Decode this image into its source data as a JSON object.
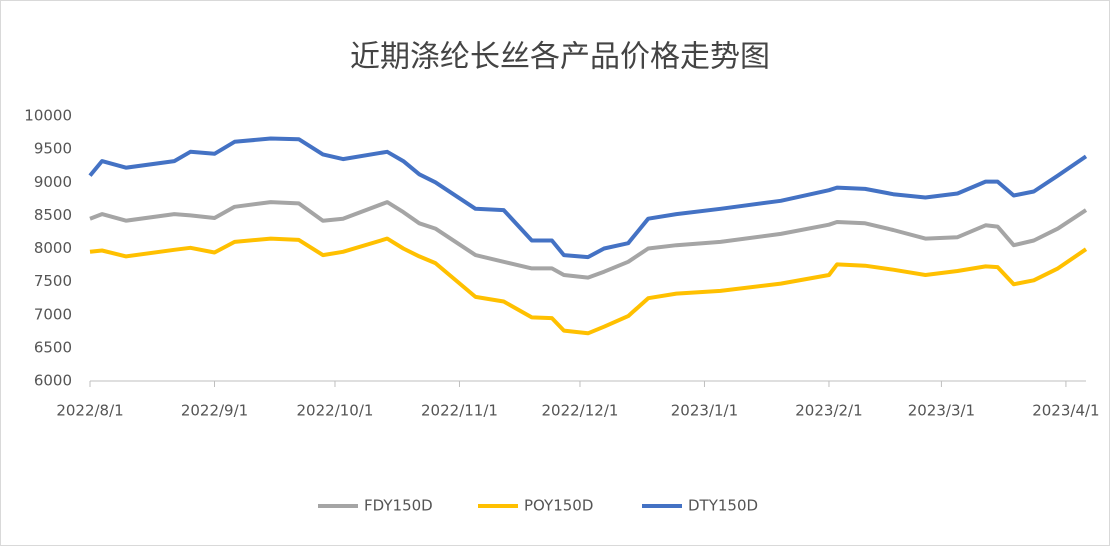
{
  "chart_data": {
    "type": "line",
    "title": "近期涤纶长丝各产品价格走势图",
    "x": [
      "2022/8/1",
      "2022/8/4",
      "2022/8/10",
      "2022/8/22",
      "2022/8/26",
      "2022/9/1",
      "2022/9/6",
      "2022/9/15",
      "2022/9/22",
      "2022/9/28",
      "2022/10/3",
      "2022/10/14",
      "2022/10/18",
      "2022/10/22",
      "2022/10/26",
      "2022/11/5",
      "2022/11/12",
      "2022/11/19",
      "2022/11/24",
      "2022/11/27",
      "2022/12/3",
      "2022/12/7",
      "2022/12/13",
      "2022/12/18",
      "2022/12/25",
      "2023/1/5",
      "2023/1/20",
      "2023/2/1",
      "2023/2/3",
      "2023/2/10",
      "2023/2/17",
      "2023/2/25",
      "2023/3/5",
      "2023/3/12",
      "2023/3/15",
      "2023/3/19",
      "2023/3/24",
      "2023/3/30",
      "2023/4/6"
    ],
    "series": [
      {
        "name": "FDY150D",
        "color": "#a5a5a5",
        "values": [
          8450,
          8520,
          8420,
          8520,
          8500,
          8460,
          8630,
          8700,
          8680,
          8420,
          8450,
          8700,
          8550,
          8380,
          8300,
          7900,
          7800,
          7700,
          7700,
          7600,
          7560,
          7650,
          7800,
          8000,
          8050,
          8100,
          8220,
          8360,
          8400,
          8380,
          8280,
          8150,
          8170,
          8350,
          8330,
          8050,
          8120,
          8300,
          8580
        ]
      },
      {
        "name": "POY150D",
        "color": "#ffc000",
        "values": [
          7950,
          7970,
          7880,
          7980,
          8010,
          7940,
          8100,
          8150,
          8130,
          7900,
          7950,
          8150,
          8000,
          7880,
          7780,
          7270,
          7200,
          6960,
          6950,
          6760,
          6720,
          6820,
          6980,
          7250,
          7320,
          7360,
          7470,
          7600,
          7760,
          7740,
          7680,
          7600,
          7660,
          7730,
          7720,
          7460,
          7520,
          7700,
          7990
        ]
      },
      {
        "name": "DTY150D",
        "color": "#4472c4",
        "values": [
          9100,
          9320,
          9220,
          9320,
          9460,
          9430,
          9610,
          9660,
          9650,
          9420,
          9350,
          9460,
          9320,
          9120,
          9000,
          8600,
          8580,
          8120,
          8120,
          7900,
          7870,
          8000,
          8080,
          8450,
          8520,
          8600,
          8720,
          8880,
          8920,
          8900,
          8820,
          8770,
          8830,
          9010,
          9010,
          8800,
          8860,
          9100,
          9390
        ]
      }
    ],
    "xlim": [
      "2022/8/1",
      "2023/4/6"
    ],
    "xticks": [
      "2022/8/1",
      "2022/9/1",
      "2022/10/1",
      "2022/11/1",
      "2022/12/1",
      "2023/1/1",
      "2023/2/1",
      "2023/3/1",
      "2023/4/1"
    ],
    "ylim": [
      6000,
      10000
    ],
    "yticks": [
      6000,
      6500,
      7000,
      7500,
      8000,
      8500,
      9000,
      9500,
      10000
    ],
    "grid": false,
    "legend": "bottom"
  }
}
